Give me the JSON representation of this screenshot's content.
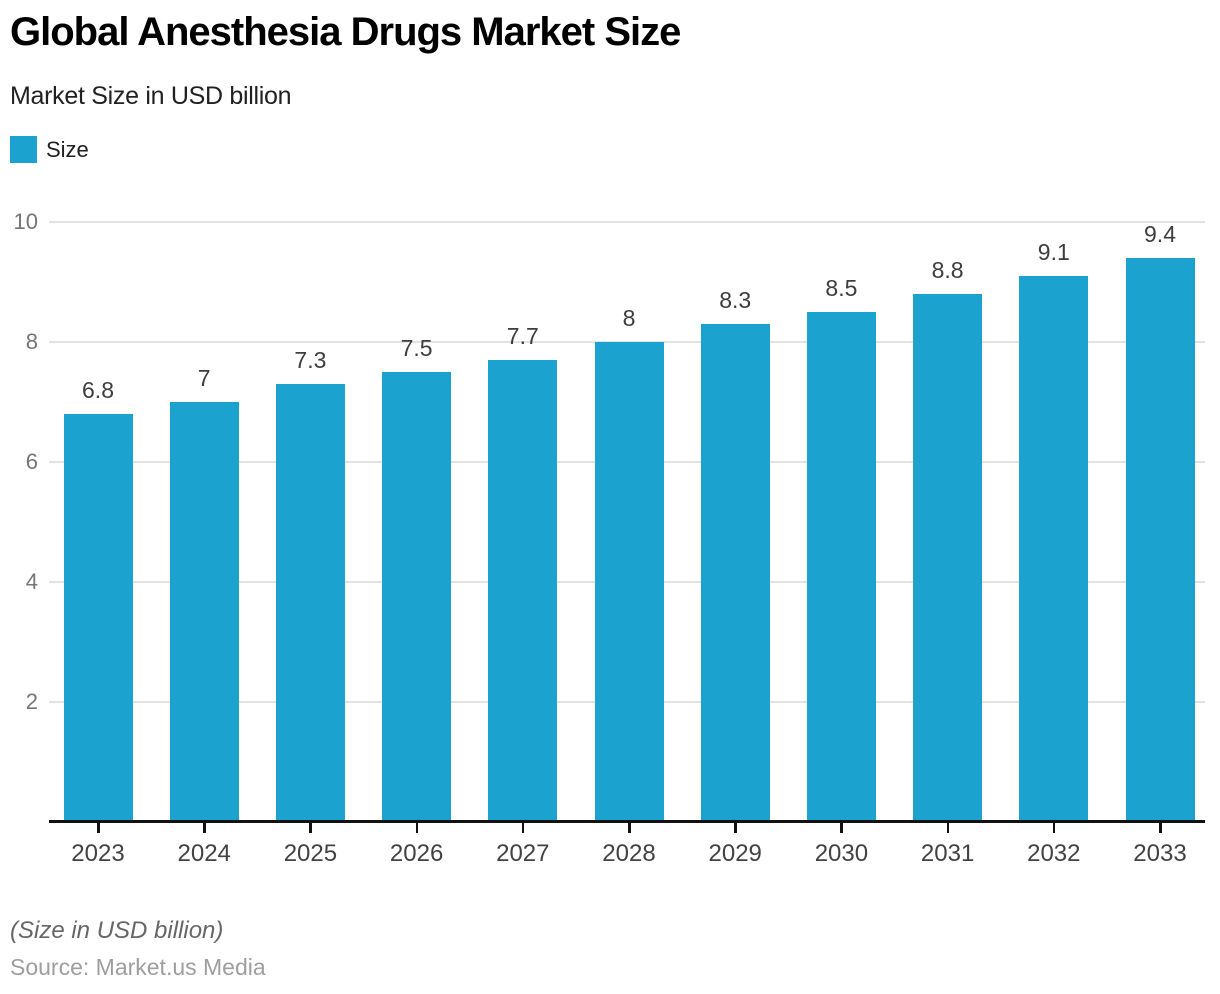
{
  "header": {
    "title": "Global Anesthesia Drugs Market Size",
    "subtitle": "Market Size in USD billion"
  },
  "legend": {
    "label": "Size",
    "swatch_color": "#1BA2CE"
  },
  "chart_data": {
    "type": "bar",
    "title": "Global Anesthesia Drugs Market Size",
    "subtitle": "Market Size in USD billion",
    "categories": [
      "2023",
      "2024",
      "2025",
      "2026",
      "2027",
      "2028",
      "2029",
      "2030",
      "2031",
      "2032",
      "2033"
    ],
    "series": [
      {
        "name": "Size",
        "values": [
          6.8,
          7,
          7.3,
          7.5,
          7.7,
          8,
          8.3,
          8.5,
          8.8,
          9.1,
          9.4
        ]
      }
    ],
    "value_labels": [
      "6.8",
      "7",
      "7.3",
      "7.5",
      "7.7",
      "8",
      "8.3",
      "8.5",
      "8.8",
      "9.1",
      "9.4"
    ],
    "xlabel": "",
    "ylabel": "",
    "ylim": [
      0,
      10
    ],
    "yticks": [
      2,
      4,
      6,
      8,
      10
    ],
    "grid": true,
    "legend_position": "top-left",
    "bar_color": "#1BA2CE",
    "gridline_color": "#e2e2e2",
    "axis_color": "#111111"
  },
  "footer": {
    "note": "(Size in USD billion)",
    "source": "Source: Market.us Media"
  }
}
